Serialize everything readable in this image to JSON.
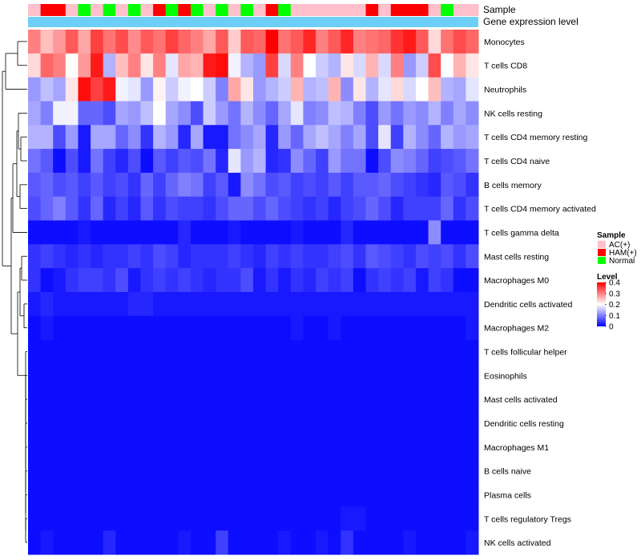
{
  "chart_data": {
    "type": "heatmap",
    "title": "",
    "annotations": {
      "sample_label": "Sample",
      "gene_label": "Gene expression level",
      "sample_row": [
        "AC(+)",
        "HAM(+)",
        "HAM(+)",
        "AC(+)",
        "Normal",
        "AC(+)",
        "Normal",
        "AC(+)",
        "Normal",
        "AC(+)",
        "HAM(+)",
        "Normal",
        "HAM(+)",
        "Normal",
        "AC(+)",
        "Normal",
        "AC(+)",
        "Normal",
        "AC(+)",
        "HAM(+)",
        "Normal",
        "AC(+)",
        "AC(+)",
        "AC(+)",
        "AC(+)",
        "AC(+)",
        "AC(+)",
        "HAM(+)",
        "AC(+)",
        "HAM(+)",
        "HAM(+)",
        "HAM(+)",
        "AC(+)",
        "Normal",
        "AC(+)",
        "AC(+)"
      ]
    },
    "rows": [
      "Monocytes",
      "T cells CD8",
      "Neutrophils",
      "NK cells resting",
      "T cells CD4 memory resting",
      "T cells CD4 naive",
      "B cells memory",
      "T cells CD4 memory activated",
      "T cells gamma delta",
      "Mast cells resting",
      "Macrophages M0",
      "Dendritic cells activated",
      "Macrophages M2",
      "T cells follicular helper",
      "Eosinophils",
      "Mast cells activated",
      "Dendritic cells resting",
      "Macrophages M1",
      "B cells naive",
      "Plasma cells",
      "T cells regulatory  Tregs",
      "NK cells activated"
    ],
    "n_columns": 36,
    "values": [
      [
        0.3,
        0.25,
        0.28,
        0.33,
        0.27,
        0.35,
        0.31,
        0.34,
        0.29,
        0.33,
        0.31,
        0.35,
        0.32,
        0.3,
        0.27,
        0.33,
        0.24,
        0.33,
        0.32,
        0.4,
        0.31,
        0.33,
        0.37,
        0.3,
        0.33,
        0.37,
        0.3,
        0.31,
        0.32,
        0.36,
        0.38,
        0.33,
        0.23,
        0.31,
        0.34,
        0.32
      ],
      [
        0.23,
        0.32,
        0.3,
        0.2,
        0.28,
        0.38,
        0.14,
        0.25,
        0.3,
        0.22,
        0.3,
        0.18,
        0.27,
        0.26,
        0.38,
        0.39,
        0.19,
        0.14,
        0.12,
        0.35,
        0.17,
        0.3,
        0.2,
        0.16,
        0.14,
        0.22,
        0.17,
        0.26,
        0.17,
        0.3,
        0.12,
        0.16,
        0.34,
        0.2,
        0.26,
        0.22
      ],
      [
        0.12,
        0.15,
        0.13,
        0.22,
        0.39,
        0.35,
        0.38,
        0.19,
        0.18,
        0.12,
        0.21,
        0.16,
        0.19,
        0.2,
        0.16,
        0.1,
        0.27,
        0.22,
        0.12,
        0.14,
        0.16,
        0.26,
        0.14,
        0.15,
        0.26,
        0.11,
        0.22,
        0.14,
        0.18,
        0.23,
        0.17,
        0.2,
        0.25,
        0.14,
        0.13,
        0.18
      ],
      [
        0.13,
        0.1,
        0.19,
        0.19,
        0.08,
        0.08,
        0.06,
        0.13,
        0.12,
        0.15,
        0.2,
        0.13,
        0.11,
        0.06,
        0.16,
        0.12,
        0.09,
        0.14,
        0.11,
        0.08,
        0.13,
        0.18,
        0.1,
        0.11,
        0.15,
        0.14,
        0.1,
        0.06,
        0.12,
        0.09,
        0.12,
        0.11,
        0.14,
        0.1,
        0.13,
        0.11
      ],
      [
        0.14,
        0.14,
        0.06,
        0.12,
        0.02,
        0.13,
        0.13,
        0.08,
        0.11,
        0.04,
        0.14,
        0.12,
        0.03,
        0.13,
        0.02,
        0.02,
        0.09,
        0.11,
        0.13,
        0.03,
        0.12,
        0.08,
        0.13,
        0.15,
        0.13,
        0.1,
        0.13,
        0.06,
        0.18,
        0.05,
        0.14,
        0.11,
        0.08,
        0.14,
        0.12,
        0.13
      ],
      [
        0.09,
        0.07,
        0.01,
        0.06,
        0.02,
        0.09,
        0.05,
        0.03,
        0.06,
        0.01,
        0.07,
        0.05,
        0.07,
        0.06,
        0.09,
        0.03,
        0.18,
        0.12,
        0.14,
        0.03,
        0.04,
        0.11,
        0.08,
        0.05,
        0.12,
        0.09,
        0.09,
        0.01,
        0.06,
        0.11,
        0.1,
        0.08,
        0.05,
        0.06,
        0.07,
        0.09
      ],
      [
        0.07,
        0.08,
        0.06,
        0.07,
        0.05,
        0.07,
        0.05,
        0.06,
        0.04,
        0.08,
        0.05,
        0.08,
        0.1,
        0.09,
        0.05,
        0.07,
        0.02,
        0.11,
        0.09,
        0.06,
        0.07,
        0.05,
        0.06,
        0.05,
        0.07,
        0.05,
        0.07,
        0.07,
        0.08,
        0.06,
        0.05,
        0.04,
        0.03,
        0.07,
        0.06,
        0.04
      ],
      [
        0.06,
        0.08,
        0.1,
        0.07,
        0.04,
        0.08,
        0.03,
        0.05,
        0.03,
        0.07,
        0.04,
        0.06,
        0.05,
        0.05,
        0.04,
        0.06,
        0.08,
        0.08,
        0.06,
        0.08,
        0.06,
        0.05,
        0.04,
        0.05,
        0.03,
        0.05,
        0.06,
        0.08,
        0.06,
        0.03,
        0.05,
        0.05,
        0.05,
        0.08,
        0.04,
        0.06
      ],
      [
        0.01,
        0.01,
        0.01,
        0.01,
        0.02,
        0.01,
        0.01,
        0.01,
        0.01,
        0.01,
        0.01,
        0.01,
        0.03,
        0.01,
        0.01,
        0.01,
        0.02,
        0.01,
        0.01,
        0.01,
        0.01,
        0.02,
        0.01,
        0.01,
        0.01,
        0.03,
        0.01,
        0.01,
        0.01,
        0.01,
        0.01,
        0.01,
        0.11,
        0.01,
        0.01,
        0.01
      ],
      [
        0.04,
        0.05,
        0.04,
        0.03,
        0.04,
        0.03,
        0.04,
        0.04,
        0.05,
        0.04,
        0.06,
        0.05,
        0.03,
        0.04,
        0.04,
        0.04,
        0.05,
        0.04,
        0.03,
        0.05,
        0.04,
        0.05,
        0.04,
        0.04,
        0.05,
        0.06,
        0.04,
        0.07,
        0.06,
        0.05,
        0.04,
        0.06,
        0.05,
        0.06,
        0.04,
        0.06
      ],
      [
        0.04,
        0.01,
        0.02,
        0.04,
        0.05,
        0.05,
        0.04,
        0.06,
        0.02,
        0.04,
        0.05,
        0.04,
        0.05,
        0.04,
        0.03,
        0.04,
        0.04,
        0.06,
        0.02,
        0.04,
        0.02,
        0.04,
        0.03,
        0.05,
        0.04,
        0.05,
        0.01,
        0.04,
        0.05,
        0.04,
        0.05,
        0.02,
        0.05,
        0.04,
        0.01,
        0.01
      ],
      [
        0.02,
        0.03,
        0.02,
        0.02,
        0.02,
        0.02,
        0.02,
        0.02,
        0.03,
        0.03,
        0.02,
        0.02,
        0.02,
        0.02,
        0.02,
        0.02,
        0.02,
        0.02,
        0.02,
        0.02,
        0.02,
        0.02,
        0.02,
        0.02,
        0.02,
        0.02,
        0.02,
        0.02,
        0.02,
        0.02,
        0.02,
        0.02,
        0.02,
        0.02,
        0.02,
        0.02
      ],
      [
        0.01,
        0.02,
        0.01,
        0.01,
        0.01,
        0.01,
        0.01,
        0.01,
        0.01,
        0.01,
        0.01,
        0.01,
        0.01,
        0.01,
        0.01,
        0.01,
        0.01,
        0.01,
        0.01,
        0.01,
        0.01,
        0.02,
        0.01,
        0.01,
        0.02,
        0.01,
        0.01,
        0.01,
        0.01,
        0.01,
        0.01,
        0.01,
        0.01,
        0.01,
        0.01,
        0.02
      ],
      [
        0.01,
        0.01,
        0.01,
        0.01,
        0.01,
        0.01,
        0.01,
        0.01,
        0.01,
        0.01,
        0.01,
        0.01,
        0.01,
        0.01,
        0.01,
        0.01,
        0.01,
        0.01,
        0.01,
        0.01,
        0.01,
        0.01,
        0.01,
        0.01,
        0.01,
        0.01,
        0.01,
        0.01,
        0.01,
        0.01,
        0.01,
        0.01,
        0.01,
        0.01,
        0.01,
        0.01
      ],
      [
        0.01,
        0.01,
        0.01,
        0.01,
        0.01,
        0.01,
        0.01,
        0.01,
        0.01,
        0.01,
        0.01,
        0.01,
        0.01,
        0.01,
        0.01,
        0.01,
        0.01,
        0.01,
        0.01,
        0.01,
        0.01,
        0.01,
        0.01,
        0.01,
        0.01,
        0.01,
        0.01,
        0.01,
        0.01,
        0.01,
        0.01,
        0.01,
        0.01,
        0.01,
        0.01,
        0.01
      ],
      [
        0.01,
        0.01,
        0.01,
        0.01,
        0.01,
        0.01,
        0.01,
        0.01,
        0.01,
        0.01,
        0.01,
        0.01,
        0.01,
        0.01,
        0.01,
        0.01,
        0.01,
        0.01,
        0.01,
        0.01,
        0.01,
        0.01,
        0.01,
        0.01,
        0.01,
        0.01,
        0.01,
        0.01,
        0.01,
        0.01,
        0.01,
        0.01,
        0.01,
        0.01,
        0.01,
        0.01
      ],
      [
        0.01,
        0.01,
        0.01,
        0.01,
        0.01,
        0.01,
        0.01,
        0.01,
        0.01,
        0.01,
        0.01,
        0.01,
        0.01,
        0.01,
        0.01,
        0.01,
        0.01,
        0.01,
        0.01,
        0.01,
        0.01,
        0.01,
        0.01,
        0.01,
        0.01,
        0.01,
        0.01,
        0.01,
        0.01,
        0.01,
        0.01,
        0.01,
        0.01,
        0.01,
        0.01,
        0.01
      ],
      [
        0.01,
        0.01,
        0.01,
        0.01,
        0.01,
        0.01,
        0.01,
        0.01,
        0.01,
        0.01,
        0.01,
        0.01,
        0.01,
        0.01,
        0.01,
        0.01,
        0.01,
        0.01,
        0.01,
        0.01,
        0.01,
        0.01,
        0.01,
        0.01,
        0.01,
        0.01,
        0.01,
        0.01,
        0.01,
        0.01,
        0.01,
        0.01,
        0.01,
        0.01,
        0.01,
        0.01
      ],
      [
        0.01,
        0.01,
        0.01,
        0.01,
        0.01,
        0.01,
        0.01,
        0.01,
        0.01,
        0.01,
        0.01,
        0.01,
        0.01,
        0.01,
        0.01,
        0.01,
        0.01,
        0.01,
        0.01,
        0.01,
        0.01,
        0.01,
        0.01,
        0.01,
        0.01,
        0.01,
        0.01,
        0.01,
        0.01,
        0.01,
        0.01,
        0.01,
        0.01,
        0.01,
        0.01,
        0.01
      ],
      [
        0.01,
        0.01,
        0.01,
        0.01,
        0.01,
        0.01,
        0.01,
        0.01,
        0.01,
        0.01,
        0.01,
        0.01,
        0.01,
        0.01,
        0.01,
        0.01,
        0.01,
        0.01,
        0.01,
        0.01,
        0.01,
        0.01,
        0.01,
        0.01,
        0.01,
        0.01,
        0.01,
        0.01,
        0.01,
        0.01,
        0.01,
        0.01,
        0.01,
        0.01,
        0.01,
        0.01
      ],
      [
        0.01,
        0.01,
        0.01,
        0.01,
        0.01,
        0.01,
        0.01,
        0.01,
        0.01,
        0.01,
        0.01,
        0.01,
        0.01,
        0.01,
        0.01,
        0.01,
        0.01,
        0.01,
        0.01,
        0.01,
        0.01,
        0.01,
        0.01,
        0.01,
        0.01,
        0.02,
        0.02,
        0.01,
        0.01,
        0.01,
        0.01,
        0.01,
        0.01,
        0.01,
        0.01,
        0.01
      ],
      [
        0.01,
        0.02,
        0.01,
        0.01,
        0.01,
        0.01,
        0.03,
        0.01,
        0.01,
        0.01,
        0.01,
        0.01,
        0.02,
        0.01,
        0.01,
        0.05,
        0.01,
        0.01,
        0.01,
        0.01,
        0.02,
        0.01,
        0.01,
        0.02,
        0.01,
        0.04,
        0.01,
        0.01,
        0.01,
        0.01,
        0.02,
        0.01,
        0.01,
        0.01,
        0.01,
        0.02
      ]
    ],
    "color_scale": {
      "min": 0,
      "max": 0.4,
      "low_color": "#0000ff",
      "mid_color": "#ffffff",
      "high_color": "#ff0000",
      "midpoint": 0.2
    },
    "legend": {
      "sample_title": "Sample",
      "sample_entries": [
        {
          "label": "AC(+)",
          "color": "#ffc0cb"
        },
        {
          "label": "HAM(+)",
          "color": "#ff0000"
        },
        {
          "label": "Normal",
          "color": "#00ff00"
        }
      ],
      "level_title": "Level",
      "level_ticks": [
        "0.4",
        "0.3",
        "0.2",
        "0.1",
        "0"
      ],
      "level_tick_values": [
        0.4,
        0.3,
        0.2,
        0.1,
        0
      ],
      "placement": "right"
    },
    "gene_bar_color": "#6ecff6",
    "dendrogram": "row clustering tree on left"
  }
}
